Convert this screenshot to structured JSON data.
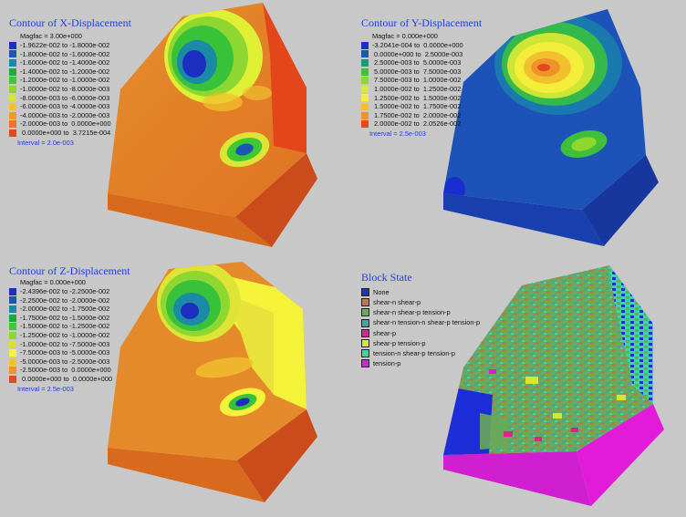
{
  "panels": {
    "x": {
      "title": "Contour of X-Displacement",
      "magfac": "Magfac  =  3.00e+000",
      "interval": "Interval = 2.0e-003",
      "legend": [
        {
          "label": "-1.9622e-002 to -1.8000e-002",
          "color": "#1c2fc0"
        },
        {
          "label": "-1.8000e-002 to -1.6000e-002",
          "color": "#1858b4"
        },
        {
          "label": "-1.6000e-002 to -1.4000e-002",
          "color": "#1a8aa6"
        },
        {
          "label": "-1.4000e-002 to -1.2000e-002",
          "color": "#19ac3c"
        },
        {
          "label": "-1.2000e-002 to -1.0000e-002",
          "color": "#3fc834"
        },
        {
          "label": "-1.0000e-002 to -8.0000e-003",
          "color": "#8ed630"
        },
        {
          "label": "-8.0000e-003 to -6.0000e-003",
          "color": "#d8e234"
        },
        {
          "label": "-6.0000e-003 to -4.0000e-003",
          "color": "#f1c02e"
        },
        {
          "label": "-4.0000e-003 to -2.0000e-003",
          "color": "#ee9a2a"
        },
        {
          "label": "-2.0000e-003 to  0.0000e+000",
          "color": "#e57722"
        },
        {
          "label": " 0.0000e+000 to  3.7215e-004",
          "color": "#e5471c"
        }
      ]
    },
    "y": {
      "title": "Contour of Y-Displacement",
      "magfac": "Magfac  =  0.000e+000",
      "interval": "Interval = 2.5e-003",
      "legend": [
        {
          "label": "-3.2041e-004 to  0.0000e+000",
          "color": "#1a2ed0"
        },
        {
          "label": " 0.0000e+000 to  2.5000e-003",
          "color": "#1a58b4"
        },
        {
          "label": " 2.5000e-003 to  5.0000e-003",
          "color": "#189c72"
        },
        {
          "label": " 5.0000e-003 to  7.5000e-003",
          "color": "#3fbf3a"
        },
        {
          "label": " 7.5000e-003 to  1.0000e-002",
          "color": "#8fd62f"
        },
        {
          "label": " 1.0000e-002 to  1.2500e-002",
          "color": "#d9ea34"
        },
        {
          "label": " 1.2500e-002 to  1.5000e-002",
          "color": "#f3ee3a"
        },
        {
          "label": " 1.5000e-002 to  1.7500e-002",
          "color": "#f2c02e"
        },
        {
          "label": " 1.7500e-002 to  2.0000e-002",
          "color": "#ee922a"
        },
        {
          "label": " 2.0000e-002 to  2.0526e-002",
          "color": "#e5481c"
        }
      ]
    },
    "z": {
      "title": "Contour of Z-Displacement",
      "magfac": "Magfac  =  0.000e+000",
      "interval": "Interval = 2.5e-003",
      "legend": [
        {
          "label": "-2.4396e-002 to -2.2500e-002",
          "color": "#1c2fc0"
        },
        {
          "label": "-2.2500e-002 to -2.0000e-002",
          "color": "#1858b4"
        },
        {
          "label": "-2.0000e-002 to -1.7500e-002",
          "color": "#1a8aa6"
        },
        {
          "label": "-1.7500e-002 to -1.5000e-002",
          "color": "#19ac3c"
        },
        {
          "label": "-1.5000e-002 to -1.2500e-002",
          "color": "#3fc834"
        },
        {
          "label": "-1.2500e-002 to -1.0000e-002",
          "color": "#8ed630"
        },
        {
          "label": "-1.0000e-002 to -7.5000e-003",
          "color": "#d8e234"
        },
        {
          "label": "-7.5000e-003 to -5.0000e-003",
          "color": "#f5f23a"
        },
        {
          "label": "-5.0000e-003 to -2.5000e-003",
          "color": "#f1c02e"
        },
        {
          "label": "-2.5000e-003 to  0.0000e+000",
          "color": "#ee922a"
        },
        {
          "label": " 0.0000e+000 to  0.0000e+000",
          "color": "#e5481c"
        }
      ]
    },
    "block": {
      "title": "Block State",
      "legend": [
        {
          "label": "None",
          "color": "#1d2ed8"
        },
        {
          "label": "shear-n shear-p",
          "color": "#b8775a"
        },
        {
          "label": "shear-n shear-p tension-p",
          "color": "#69a95a"
        },
        {
          "label": "shear-n tension-n shear-p tension-p",
          "color": "#4f9fa0"
        },
        {
          "label": "shear-p",
          "color": "#e0208f"
        },
        {
          "label": "shear-p tension-p",
          "color": "#d7e82a"
        },
        {
          "label": "tension-n shear-p tension-p",
          "color": "#3fd4a0"
        },
        {
          "label": "tension-p",
          "color": "#e21bd8"
        }
      ]
    }
  },
  "colors": {
    "background": "#c8c8c8",
    "title": "#1f3fd6",
    "interval": "#1f3fd6"
  }
}
